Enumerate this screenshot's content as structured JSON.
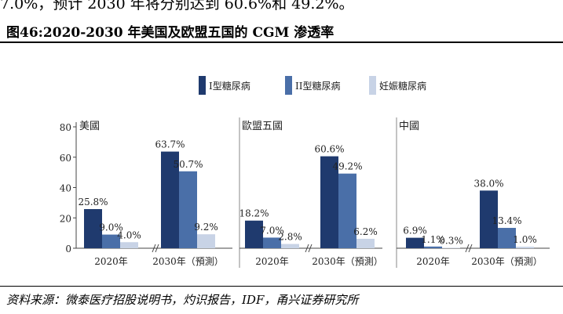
{
  "intro_text": "7.0%，预计 2030 年将分别达到 60.6%和 49.2%。",
  "figure_title": "图46:2020-2030 年美国及欧盟五国的 CGM 渗透率",
  "source_note": "资料来源：微泰医疗招股说明书，灼识报告，IDF，甬兴证券研究所",
  "chart_data": {
    "type": "bar",
    "ylim": [
      0,
      80
    ],
    "yticks": [
      0,
      20,
      40,
      60,
      80
    ],
    "legend": {
      "placement": "top-center",
      "entries": [
        "I型糖尿病",
        "II型糖尿病",
        "妊娠糖尿病"
      ]
    },
    "colors": [
      "#1f3a6e",
      "#4a6fa8",
      "#c8d3e6"
    ],
    "panels": [
      {
        "name": "美國",
        "categories": [
          "2020年",
          "2030年（預測）"
        ],
        "series": [
          {
            "name": "I型糖尿病",
            "values": [
              25.8,
              63.7
            ],
            "labels": [
              "25.8%",
              "63.7%"
            ]
          },
          {
            "name": "II型糖尿病",
            "values": [
              9.0,
              50.7
            ],
            "labels": [
              "9.0%",
              "50.7%"
            ]
          },
          {
            "name": "妊娠糖尿病",
            "values": [
              4.0,
              9.2
            ],
            "labels": [
              "4.0%",
              "9.2%"
            ]
          }
        ]
      },
      {
        "name": "歐盟五國",
        "categories": [
          "2020年",
          "2030年（預測）"
        ],
        "series": [
          {
            "name": "I型糖尿病",
            "values": [
              18.2,
              60.6
            ],
            "labels": [
              "18.2%",
              "60.6%"
            ]
          },
          {
            "name": "II型糖尿病",
            "values": [
              7.0,
              49.2
            ],
            "labels": [
              "7.0%",
              "49.2%"
            ]
          },
          {
            "name": "妊娠糖尿病",
            "values": [
              2.8,
              6.2
            ],
            "labels": [
              "2.8%",
              "6.2%"
            ]
          }
        ]
      },
      {
        "name": "中國",
        "categories": [
          "2020年",
          "2030年（預測）"
        ],
        "series": [
          {
            "name": "I型糖尿病",
            "values": [
              6.9,
              38.0
            ],
            "labels": [
              "6.9%",
              "38.0%"
            ]
          },
          {
            "name": "II型糖尿病",
            "values": [
              1.1,
              13.4
            ],
            "labels": [
              "1.1%",
              "13.4%"
            ]
          },
          {
            "name": "妊娠糖尿病",
            "values": [
              0.3,
              1.0
            ],
            "labels": [
              "0.3%",
              "1.0%"
            ]
          }
        ]
      }
    ]
  }
}
